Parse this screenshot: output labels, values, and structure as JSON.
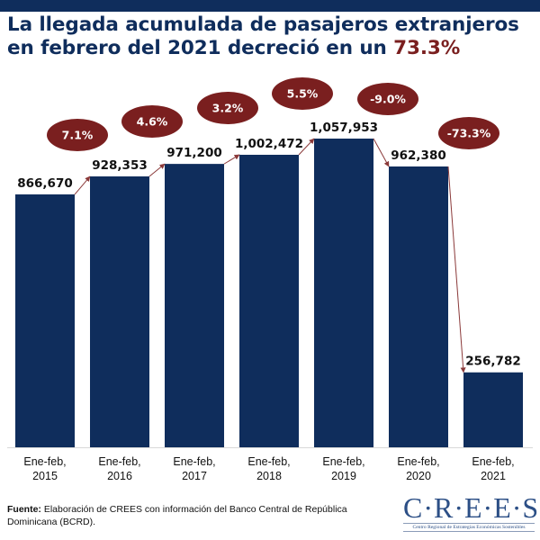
{
  "header": {
    "title_main": "La llegada acumulada de pasajeros extranjeros en febrero del 2021 decreció en un ",
    "title_highlight": "73.3%"
  },
  "colors": {
    "bar": "#0f2d5c",
    "bubble": "#7a1f1f",
    "arrow": "#8b3a3a",
    "title": "#0f2d5c",
    "highlight": "#7a1f1f"
  },
  "chart_data": {
    "type": "bar",
    "title": "La llegada acumulada de pasajeros extranjeros en febrero del 2021 decreció en un 73.3%",
    "xlabel": "",
    "ylabel": "",
    "ylim": [
      0,
      1057953
    ],
    "grid": false,
    "legend": "none",
    "categories": [
      [
        "Ene-feb,",
        "2015"
      ],
      [
        "Ene-feb,",
        "2016"
      ],
      [
        "Ene-feb,",
        "2017"
      ],
      [
        "Ene-feb,",
        "2018"
      ],
      [
        "Ene-feb,",
        "2019"
      ],
      [
        "Ene-feb,",
        "2020"
      ],
      [
        "Ene-feb,",
        "2021"
      ]
    ],
    "values": [
      866670,
      928353,
      971200,
      1002472,
      1057953,
      962380,
      256782
    ],
    "value_labels": [
      "866,670",
      "928,353",
      "971,200",
      "1,002,472",
      "1,057,953",
      "962,380",
      "256,782"
    ],
    "growth_rates": [
      "7.1%",
      "4.6%",
      "3.2%",
      "5.5%",
      "-9.0%",
      "-73.3%"
    ]
  },
  "footer": {
    "source_label": "Fuente:",
    "source_text": " Elaboración de CREES con información del Banco Central de República Dominicana (BCRD)."
  },
  "logo": {
    "name": "C·R·E·E·S",
    "subtitle": "Centro Regional de Estrategias Económicas Sostenibles"
  }
}
